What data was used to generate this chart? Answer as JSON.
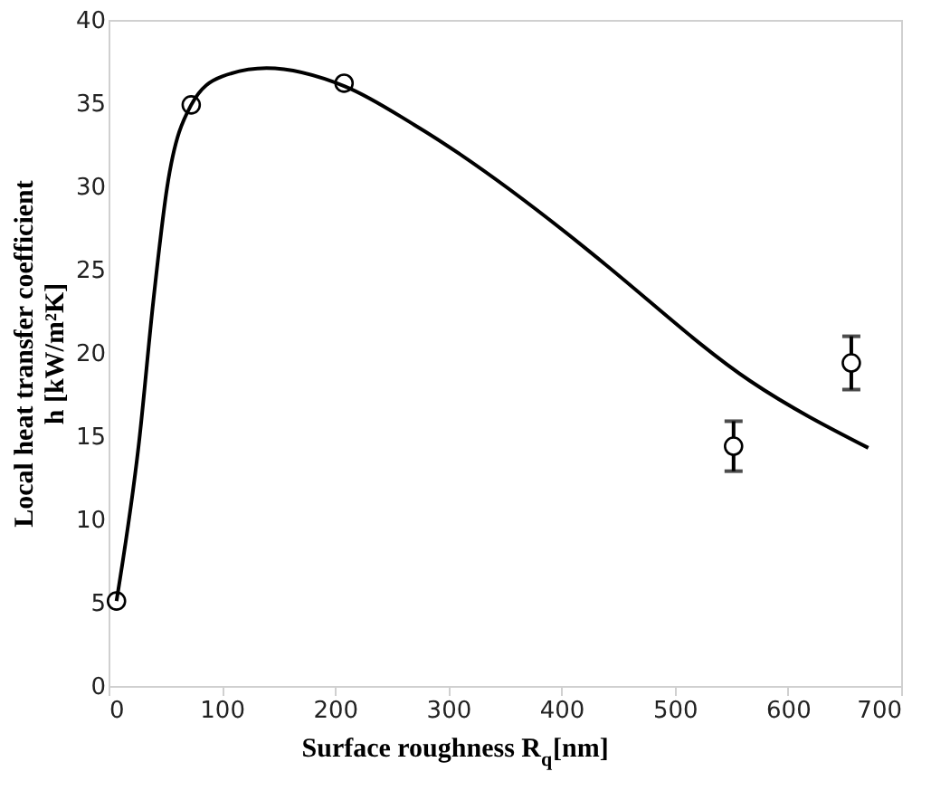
{
  "chart_data": {
    "type": "scatter",
    "xlabel": "Surface roughness R$_{q}$[nm]",
    "ylabel": "Local heat transfer coefficient\nh [kW/m²K]",
    "xlim": [
      0,
      700
    ],
    "xticks": [
      0,
      100,
      200,
      300,
      400,
      500,
      600,
      700
    ],
    "ylim": [
      0,
      40
    ],
    "yticks": [
      0,
      5,
      10,
      15,
      20,
      25,
      30,
      35,
      40
    ],
    "grid": false,
    "series": [
      {
        "type": "scatter",
        "color": "#000000",
        "marker": "circle",
        "x": [
          7,
          73,
          208,
          552,
          656
        ],
        "values": [
          5.1,
          34.9,
          36.2,
          14.4,
          19.4
        ],
        "errors": [
          null,
          null,
          null,
          1.5,
          1.6
        ]
      },
      {
        "type": "line",
        "color": "#000000",
        "marker": "none",
        "line_style": "solid",
        "x": [
          7,
          27,
          39.5,
          51.6,
          73,
          100,
          139.5,
          209,
          270,
          421,
          439,
          567,
          671
        ],
        "values": [
          5.1,
          14.7,
          23.1,
          29.9,
          34.9,
          36.6,
          37.1,
          36.0,
          33.7,
          26.3,
          25.3,
          18.3,
          14.3
        ]
      }
    ]
  }
}
